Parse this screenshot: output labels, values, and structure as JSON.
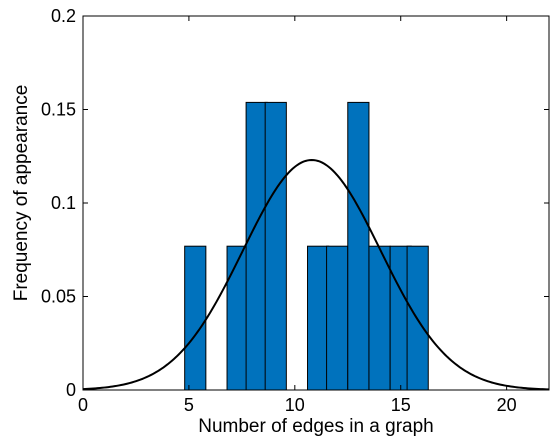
{
  "chart_data": {
    "type": "bar",
    "title": "",
    "xlabel": "Number of edges in a graph",
    "ylabel": "Frequency of appearance",
    "xlim": [
      0,
      22
    ],
    "ylim": [
      0,
      0.2
    ],
    "xticks": [
      0,
      5,
      10,
      15,
      20
    ],
    "xtick_labels": [
      "0",
      "5",
      "10",
      "15",
      "20"
    ],
    "yticks": [
      0,
      0.05,
      0.1,
      0.15,
      0.2
    ],
    "ytick_labels": [
      "0",
      "0.05",
      "0.1",
      "0.15",
      "0.2"
    ],
    "grid": false,
    "bar_color": "#0072BD",
    "bar_edge_color": "#000000",
    "bar_width": 1,
    "bars": [
      {
        "x": 5.3,
        "value": 0.0769
      },
      {
        "x": 7.3,
        "value": 0.0769
      },
      {
        "x": 8.2,
        "value": 0.1538
      },
      {
        "x": 9.1,
        "value": 0.1538
      },
      {
        "x": 11.1,
        "value": 0.0769
      },
      {
        "x": 12.0,
        "value": 0.0769
      },
      {
        "x": 13.0,
        "value": 0.1538
      },
      {
        "x": 14.0,
        "value": 0.0769
      },
      {
        "x": 15.0,
        "value": 0.0769
      },
      {
        "x": 15.8,
        "value": 0.0769
      }
    ],
    "fit_curve": {
      "type": "normal",
      "color": "#000000",
      "mean": 10.8,
      "std": 3.25,
      "peak": 0.123
    }
  }
}
